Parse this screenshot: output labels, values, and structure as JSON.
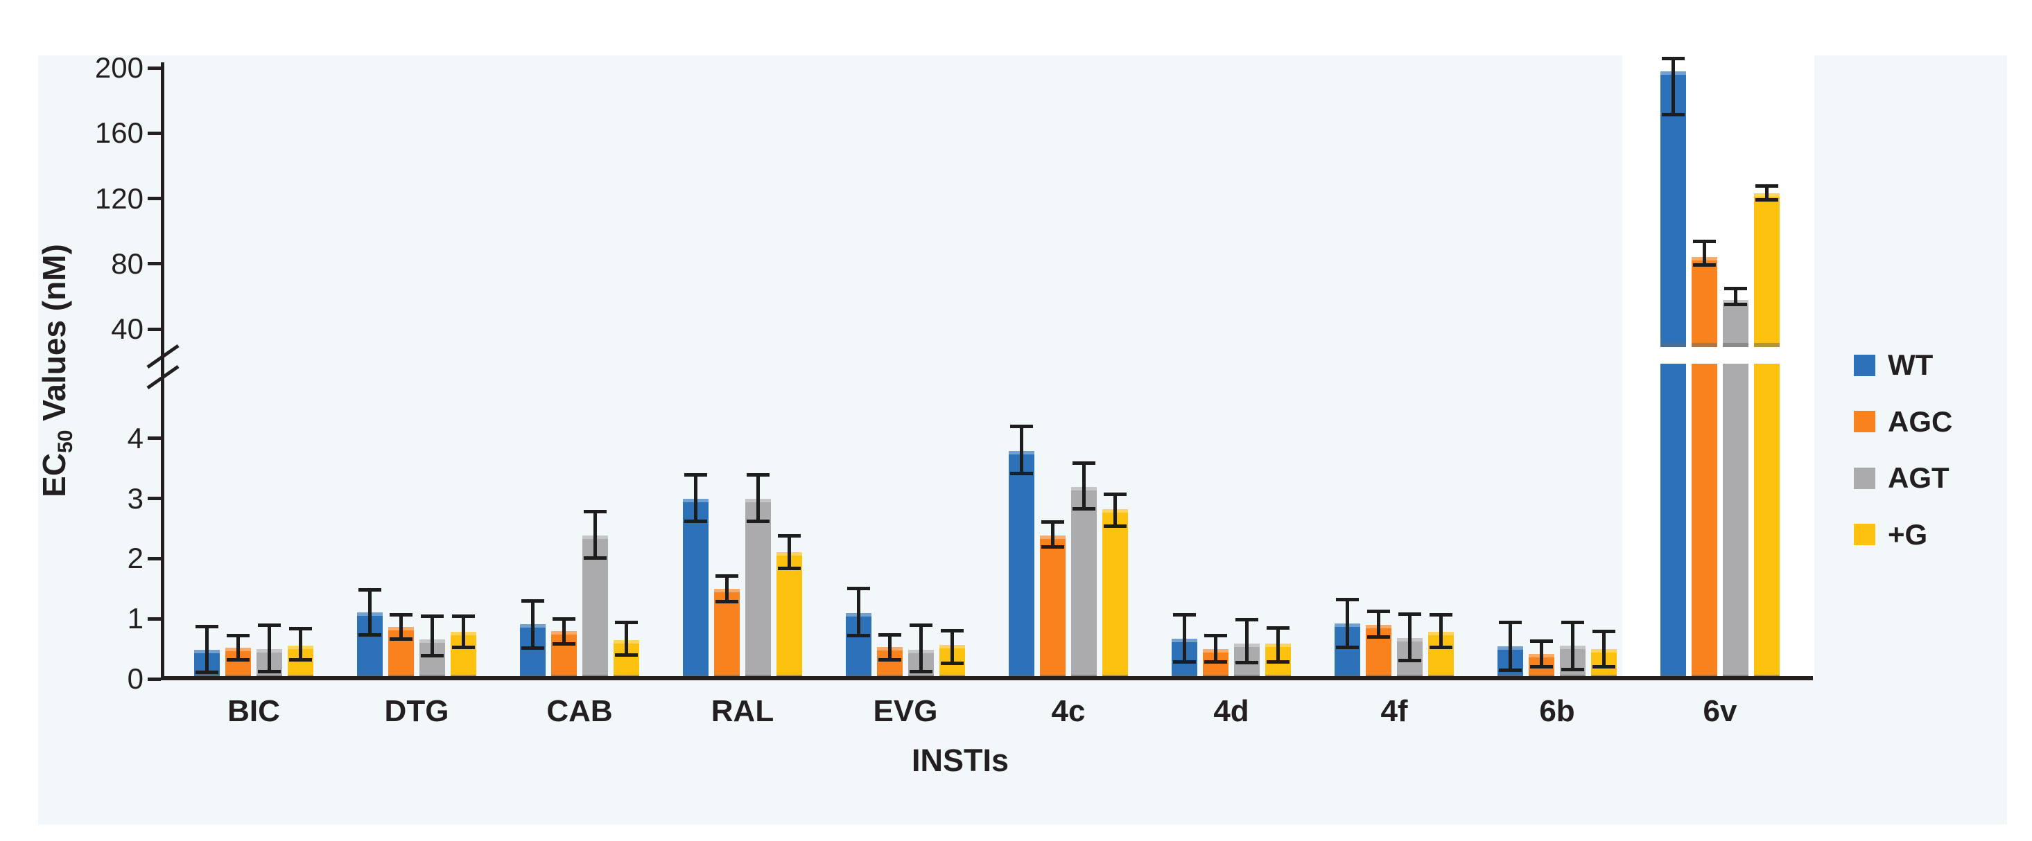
{
  "figure": {
    "y_axis": {
      "label_prefix": "EC",
      "label_sub": "50",
      "label_suffix": " Values (nM)"
    },
    "x_axis": {
      "label": "INSTIs"
    },
    "legend_title": ""
  },
  "chart_data": {
    "type": "bar",
    "title": "",
    "xlabel": "INSTIs",
    "ylabel": "EC50 Values (nM)",
    "grid": false,
    "legend_position": "right",
    "axis_break": {
      "lower_range": [
        0,
        4.7
      ],
      "upper_range": [
        40,
        207
      ],
      "lower_ticks": [
        0,
        1,
        2,
        3,
        4
      ],
      "upper_ticks": [
        40,
        80,
        120,
        160,
        200
      ]
    },
    "categories": [
      "BIC",
      "DTG",
      "CAB",
      "RAL",
      "EVG",
      "4c",
      "4d",
      "4f",
      "6b",
      "6v"
    ],
    "series": [
      {
        "name": "WT",
        "color": "#2d72b9",
        "values": [
          0.48,
          1.11,
          0.91,
          3.0,
          1.1,
          3.79,
          0.67,
          0.92,
          0.54,
          198
        ],
        "err_lo": [
          0.1,
          0.72,
          0.51,
          2.61,
          0.71,
          3.41,
          0.28,
          0.52,
          0.14,
          171
        ],
        "err_hi": [
          0.88,
          1.49,
          1.3,
          3.4,
          1.51,
          4.21,
          1.07,
          1.32,
          0.94,
          206
        ]
      },
      {
        "name": "AGC",
        "color": "#f8821e",
        "values": [
          0.52,
          0.86,
          0.79,
          1.5,
          0.53,
          2.39,
          0.5,
          0.9,
          0.42,
          84
        ],
        "err_lo": [
          0.31,
          0.66,
          0.58,
          1.28,
          0.31,
          2.19,
          0.28,
          0.69,
          0.2,
          79
        ],
        "err_hi": [
          0.73,
          1.07,
          1.0,
          1.72,
          0.74,
          2.62,
          0.73,
          1.13,
          0.63,
          94
        ]
      },
      {
        "name": "AGT",
        "color": "#ababad",
        "values": [
          0.49,
          0.66,
          2.39,
          2.99,
          0.48,
          3.19,
          0.59,
          0.68,
          0.55,
          58
        ],
        "err_lo": [
          0.11,
          0.38,
          2.0,
          2.61,
          0.11,
          2.82,
          0.27,
          0.3,
          0.15,
          55
        ],
        "err_hi": [
          0.9,
          1.05,
          2.79,
          3.4,
          0.9,
          3.6,
          0.99,
          1.08,
          0.95,
          65
        ]
      },
      {
        "name": "+G",
        "color": "#fdc110",
        "values": [
          0.55,
          0.78,
          0.65,
          2.11,
          0.56,
          2.82,
          0.59,
          0.78,
          0.5,
          123
        ],
        "err_lo": [
          0.31,
          0.52,
          0.39,
          1.83,
          0.25,
          2.54,
          0.28,
          0.52,
          0.2,
          119
        ],
        "err_hi": [
          0.84,
          1.05,
          0.95,
          2.38,
          0.81,
          3.08,
          0.85,
          1.07,
          0.8,
          128
        ]
      }
    ]
  }
}
